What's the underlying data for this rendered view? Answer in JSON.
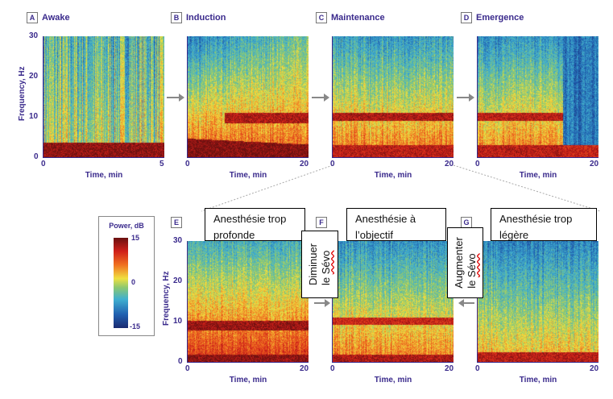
{
  "panels": [
    {
      "letter": "A",
      "title": "Awake",
      "x_ticks": [
        "0",
        "5"
      ],
      "y_ticks": [
        "0",
        "10",
        "20",
        "30"
      ],
      "xlabel": "Time, min",
      "ylabel": "Frequency, Hz"
    },
    {
      "letter": "B",
      "title": "Induction",
      "x_ticks": [
        "0",
        "20"
      ],
      "xlabel": "Time, min"
    },
    {
      "letter": "C",
      "title": "Maintenance",
      "x_ticks": [
        "0",
        "20"
      ],
      "xlabel": "Time, min"
    },
    {
      "letter": "D",
      "title": "Emergence",
      "x_ticks": [
        "0",
        "20"
      ],
      "xlabel": "Time, min"
    },
    {
      "letter": "E",
      "title": "",
      "x_ticks": [
        "0",
        "20"
      ],
      "y_ticks": [
        "0",
        "10",
        "20",
        "30"
      ],
      "xlabel": "Time, min",
      "ylabel": "Frequency, Hz"
    },
    {
      "letter": "F",
      "title": "",
      "x_ticks": [
        "0",
        "20"
      ],
      "xlabel": "Time, min"
    },
    {
      "letter": "G",
      "title": "",
      "x_ticks": [
        "0",
        "20"
      ],
      "xlabel": "Time, min"
    }
  ],
  "colorbar": {
    "title": "Power, dB",
    "ticks": [
      "15",
      "0",
      "-15"
    ],
    "range": [
      -15,
      15
    ]
  },
  "annotations": {
    "too_deep": "Anesthésie trop profonde",
    "on_target": "Anesthésie à l’objectif",
    "too_light": "Anesthésie trop légère",
    "decrease_line1": "Diminuer",
    "decrease_line2a": "le ",
    "decrease_line2b": "Sévo",
    "increase_line1": "Augmenter",
    "increase_line2a": "le ",
    "increase_line2b": "Sévo"
  }
}
